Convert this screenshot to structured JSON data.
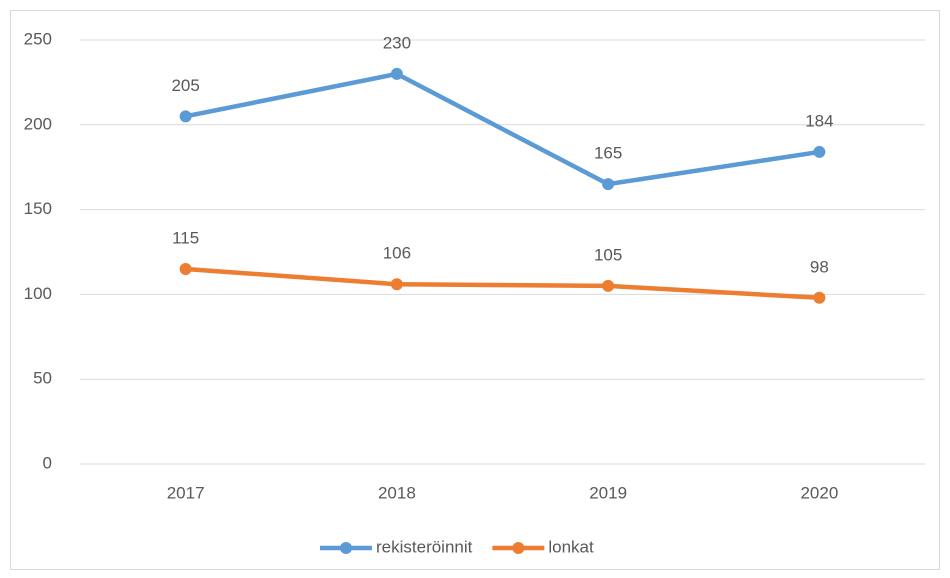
{
  "chart_data": {
    "type": "line",
    "categories": [
      "2017",
      "2018",
      "2019",
      "2020"
    ],
    "series": [
      {
        "name": "rekisteröinnit",
        "color": "#5b9bd5",
        "values": [
          205,
          230,
          165,
          184
        ]
      },
      {
        "name": "lonkat",
        "color": "#ed7d31",
        "values": [
          115,
          106,
          105,
          98
        ]
      }
    ],
    "ylim": [
      0,
      250
    ],
    "yticks": [
      0,
      50,
      100,
      150,
      200,
      250
    ],
    "grid": true,
    "legend": "bottom"
  }
}
